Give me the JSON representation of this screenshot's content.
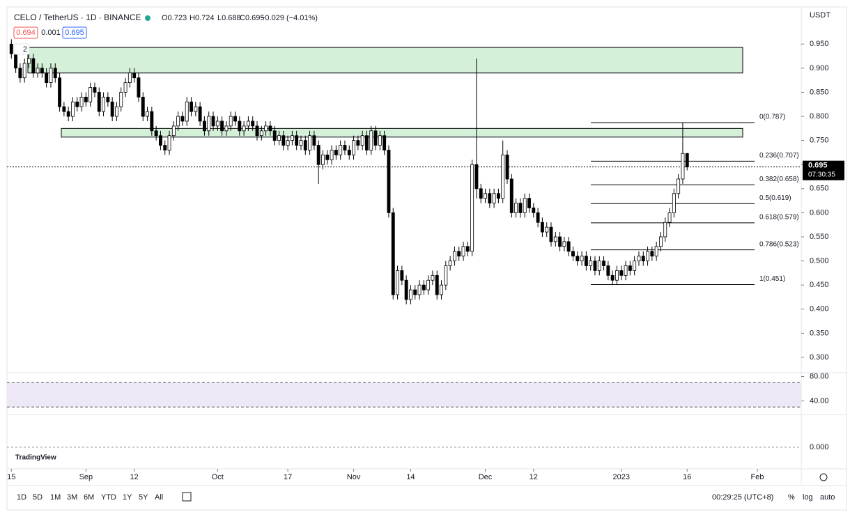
{
  "chart_data": {
    "type": "candlestick",
    "header": {
      "symbol": "CELO / TetherUS · 1D · BINANCE",
      "open": "O0.723",
      "high": "H0.724",
      "low": "L0.688",
      "close": "C0.695",
      "change": "−0.029 (−4.01%)",
      "sell": "0.694",
      "spread": "0.001",
      "buy": "0.695",
      "collapse": "2"
    },
    "currency": "USDT",
    "xlim": [
      -1,
      180
    ],
    "xticks": [
      {
        "value": 0,
        "label": "15"
      },
      {
        "value": 17,
        "label": "Sep"
      },
      {
        "value": 28,
        "label": "12"
      },
      {
        "value": 47,
        "label": "Oct"
      },
      {
        "value": 63,
        "label": "17"
      },
      {
        "value": 78,
        "label": "Nov"
      },
      {
        "value": 91,
        "label": "14"
      },
      {
        "value": 108,
        "label": "Dec"
      },
      {
        "value": 119,
        "label": "12"
      },
      {
        "value": 139,
        "label": "2023"
      },
      {
        "value": 154,
        "label": "16"
      },
      {
        "value": 170,
        "label": "Feb"
      }
    ],
    "ylim": [
      0.271,
      1.027
    ],
    "yticks": [
      {
        "value": 0.3,
        "label": "0.300"
      },
      {
        "value": 0.35,
        "label": "0.350"
      },
      {
        "value": 0.4,
        "label": "0.400"
      },
      {
        "value": 0.45,
        "label": "0.450"
      },
      {
        "value": 0.5,
        "label": "0.500"
      },
      {
        "value": 0.55,
        "label": "0.550"
      },
      {
        "value": 0.6,
        "label": "0.600"
      },
      {
        "value": 0.65,
        "label": "0.650"
      },
      {
        "value": 0.7,
        "label": "0.700"
      },
      {
        "value": 0.75,
        "label": "0.750"
      },
      {
        "value": 0.8,
        "label": "0.800"
      },
      {
        "value": 0.85,
        "label": "0.850"
      },
      {
        "value": 0.9,
        "label": "0.900"
      },
      {
        "value": 0.95,
        "label": "0.950"
      }
    ],
    "up_color": "#ffffff",
    "down_color": "#000000",
    "wick_color": "#000000",
    "open": [
      0.95,
      0.93,
      0.9,
      0.88,
      0.91,
      0.92,
      0.89,
      0.9,
      0.89,
      0.87,
      0.9,
      0.88,
      0.82,
      0.81,
      0.8,
      0.83,
      0.82,
      0.84,
      0.83,
      0.86,
      0.85,
      0.81,
      0.84,
      0.83,
      0.8,
      0.82,
      0.85,
      0.87,
      0.89,
      0.88,
      0.84,
      0.8,
      0.81,
      0.77,
      0.76,
      0.74,
      0.73,
      0.76,
      0.78,
      0.8,
      0.79,
      0.83,
      0.81,
      0.82,
      0.79,
      0.77,
      0.8,
      0.78,
      0.79,
      0.77,
      0.78,
      0.8,
      0.79,
      0.77,
      0.78,
      0.79,
      0.78,
      0.76,
      0.77,
      0.78,
      0.77,
      0.75,
      0.76,
      0.74,
      0.75,
      0.76,
      0.74,
      0.75,
      0.73,
      0.76,
      0.74,
      0.7,
      0.72,
      0.71,
      0.73,
      0.72,
      0.74,
      0.73,
      0.72,
      0.75,
      0.74,
      0.76,
      0.73,
      0.77,
      0.74,
      0.76,
      0.73,
      0.6,
      0.43,
      0.48,
      0.46,
      0.42,
      0.44,
      0.43,
      0.45,
      0.44,
      0.46,
      0.47,
      0.43,
      0.45,
      0.49,
      0.5,
      0.52,
      0.51,
      0.53,
      0.52,
      0.7,
      0.65,
      0.63,
      0.64,
      0.62,
      0.64,
      0.63,
      0.72,
      0.67,
      0.6,
      0.62,
      0.6,
      0.63,
      0.61,
      0.6,
      0.58,
      0.56,
      0.57,
      0.54,
      0.55,
      0.53,
      0.54,
      0.52,
      0.51,
      0.5,
      0.51,
      0.49,
      0.5,
      0.48,
      0.5,
      0.49,
      0.47,
      0.46,
      0.48,
      0.47,
      0.49,
      0.48,
      0.5,
      0.51,
      0.5,
      0.52,
      0.51,
      0.53,
      0.55,
      0.58,
      0.6,
      0.64,
      0.67,
      0.723
    ],
    "high": [
      0.96,
      0.94,
      0.91,
      0.92,
      0.93,
      0.93,
      0.91,
      0.91,
      0.9,
      0.91,
      0.91,
      0.89,
      0.83,
      0.82,
      0.84,
      0.84,
      0.85,
      0.85,
      0.87,
      0.87,
      0.86,
      0.85,
      0.85,
      0.84,
      0.83,
      0.86,
      0.88,
      0.9,
      0.9,
      0.89,
      0.85,
      0.82,
      0.82,
      0.78,
      0.77,
      0.75,
      0.77,
      0.79,
      0.81,
      0.81,
      0.84,
      0.84,
      0.83,
      0.83,
      0.8,
      0.81,
      0.81,
      0.8,
      0.8,
      0.79,
      0.81,
      0.81,
      0.8,
      0.79,
      0.8,
      0.8,
      0.79,
      0.78,
      0.79,
      0.79,
      0.78,
      0.77,
      0.77,
      0.76,
      0.77,
      0.77,
      0.76,
      0.76,
      0.77,
      0.77,
      0.75,
      0.73,
      0.73,
      0.74,
      0.74,
      0.75,
      0.75,
      0.74,
      0.76,
      0.76,
      0.77,
      0.77,
      0.78,
      0.78,
      0.77,
      0.77,
      0.74,
      0.61,
      0.49,
      0.49,
      0.47,
      0.45,
      0.45,
      0.46,
      0.46,
      0.47,
      0.48,
      0.48,
      0.46,
      0.5,
      0.51,
      0.53,
      0.53,
      0.54,
      0.54,
      0.71,
      0.92,
      0.66,
      0.65,
      0.65,
      0.65,
      0.65,
      0.75,
      0.73,
      0.68,
      0.63,
      0.63,
      0.64,
      0.64,
      0.62,
      0.61,
      0.59,
      0.58,
      0.58,
      0.56,
      0.56,
      0.55,
      0.55,
      0.53,
      0.52,
      0.52,
      0.52,
      0.51,
      0.51,
      0.51,
      0.51,
      0.5,
      0.48,
      0.49,
      0.49,
      0.5,
      0.5,
      0.51,
      0.52,
      0.52,
      0.53,
      0.53,
      0.54,
      0.56,
      0.59,
      0.61,
      0.65,
      0.68,
      0.787,
      0.724
    ],
    "low": [
      0.92,
      0.89,
      0.87,
      0.87,
      0.9,
      0.88,
      0.88,
      0.88,
      0.86,
      0.86,
      0.87,
      0.81,
      0.8,
      0.79,
      0.79,
      0.81,
      0.81,
      0.82,
      0.82,
      0.84,
      0.8,
      0.8,
      0.82,
      0.79,
      0.79,
      0.81,
      0.84,
      0.86,
      0.87,
      0.83,
      0.79,
      0.79,
      0.76,
      0.75,
      0.73,
      0.72,
      0.72,
      0.75,
      0.77,
      0.78,
      0.78,
      0.8,
      0.8,
      0.78,
      0.76,
      0.76,
      0.77,
      0.77,
      0.76,
      0.76,
      0.77,
      0.78,
      0.76,
      0.76,
      0.77,
      0.77,
      0.75,
      0.75,
      0.76,
      0.76,
      0.74,
      0.74,
      0.73,
      0.73,
      0.74,
      0.73,
      0.73,
      0.72,
      0.72,
      0.73,
      0.66,
      0.69,
      0.7,
      0.7,
      0.71,
      0.71,
      0.72,
      0.71,
      0.71,
      0.73,
      0.73,
      0.72,
      0.72,
      0.73,
      0.73,
      0.72,
      0.59,
      0.42,
      0.42,
      0.45,
      0.41,
      0.41,
      0.42,
      0.42,
      0.43,
      0.43,
      0.45,
      0.42,
      0.42,
      0.44,
      0.48,
      0.49,
      0.5,
      0.5,
      0.51,
      0.51,
      0.63,
      0.62,
      0.62,
      0.61,
      0.61,
      0.62,
      0.62,
      0.66,
      0.59,
      0.59,
      0.59,
      0.59,
      0.6,
      0.59,
      0.57,
      0.55,
      0.55,
      0.53,
      0.53,
      0.52,
      0.52,
      0.51,
      0.5,
      0.49,
      0.49,
      0.48,
      0.48,
      0.47,
      0.47,
      0.48,
      0.46,
      0.45,
      0.45,
      0.46,
      0.46,
      0.47,
      0.47,
      0.49,
      0.49,
      0.49,
      0.5,
      0.5,
      0.52,
      0.54,
      0.57,
      0.59,
      0.63,
      0.66,
      0.688
    ],
    "close": [
      0.93,
      0.9,
      0.88,
      0.91,
      0.92,
      0.89,
      0.9,
      0.89,
      0.87,
      0.9,
      0.88,
      0.82,
      0.81,
      0.8,
      0.83,
      0.82,
      0.84,
      0.83,
      0.86,
      0.85,
      0.81,
      0.84,
      0.83,
      0.8,
      0.82,
      0.85,
      0.87,
      0.89,
      0.88,
      0.84,
      0.8,
      0.81,
      0.77,
      0.76,
      0.74,
      0.73,
      0.76,
      0.78,
      0.8,
      0.79,
      0.83,
      0.81,
      0.82,
      0.79,
      0.77,
      0.8,
      0.78,
      0.79,
      0.77,
      0.78,
      0.8,
      0.79,
      0.77,
      0.78,
      0.79,
      0.78,
      0.76,
      0.77,
      0.78,
      0.77,
      0.75,
      0.76,
      0.74,
      0.75,
      0.76,
      0.74,
      0.75,
      0.73,
      0.76,
      0.74,
      0.7,
      0.72,
      0.71,
      0.73,
      0.72,
      0.74,
      0.73,
      0.72,
      0.75,
      0.74,
      0.76,
      0.73,
      0.77,
      0.74,
      0.76,
      0.73,
      0.6,
      0.43,
      0.48,
      0.46,
      0.42,
      0.44,
      0.43,
      0.45,
      0.44,
      0.46,
      0.47,
      0.43,
      0.45,
      0.49,
      0.5,
      0.52,
      0.51,
      0.53,
      0.52,
      0.7,
      0.65,
      0.63,
      0.64,
      0.62,
      0.64,
      0.63,
      0.72,
      0.67,
      0.6,
      0.62,
      0.6,
      0.63,
      0.61,
      0.6,
      0.58,
      0.56,
      0.57,
      0.54,
      0.55,
      0.53,
      0.54,
      0.52,
      0.51,
      0.5,
      0.51,
      0.49,
      0.5,
      0.48,
      0.5,
      0.49,
      0.47,
      0.46,
      0.48,
      0.47,
      0.49,
      0.48,
      0.5,
      0.51,
      0.5,
      0.52,
      0.51,
      0.53,
      0.55,
      0.58,
      0.6,
      0.64,
      0.67,
      0.723,
      0.695
    ],
    "zones": [
      [
        0.89,
        0.943
      ],
      [
        0.757,
        0.775
      ]
    ],
    "zone_color": "#d4f0d9",
    "fib_levels": [
      {
        "value": 0.787,
        "label": "0(0.787)"
      },
      {
        "value": 0.707,
        "label": "0.236(0.707)"
      },
      {
        "value": 0.658,
        "label": "0.382(0.658)"
      },
      {
        "value": 0.619,
        "label": "0.5(0.619)"
      },
      {
        "value": 0.579,
        "label": "0.618(0.579)"
      },
      {
        "value": 0.523,
        "label": "0.786(0.523)"
      },
      {
        "value": 0.451,
        "label": "1(0.451)"
      }
    ],
    "last_price": 0.695,
    "countdown": "07:30:35",
    "rsi": {
      "ylim": [
        20,
        84
      ],
      "yticks": [
        {
          "value": 80,
          "label": "80.00"
        },
        {
          "value": 40,
          "label": "40.00"
        }
      ],
      "band": [
        30,
        70
      ]
    },
    "macd": {
      "yticks": [
        {
          "value": 0,
          "label": "0.000"
        }
      ]
    },
    "logo": "TradingView",
    "toolbar": {
      "ranges": [
        "1D",
        "5D",
        "1M",
        "3M",
        "6M",
        "YTD",
        "1Y",
        "5Y",
        "All"
      ],
      "clock": "00:29:25 (UTC+8)",
      "percent": "%",
      "log": "log",
      "auto": "auto"
    }
  }
}
